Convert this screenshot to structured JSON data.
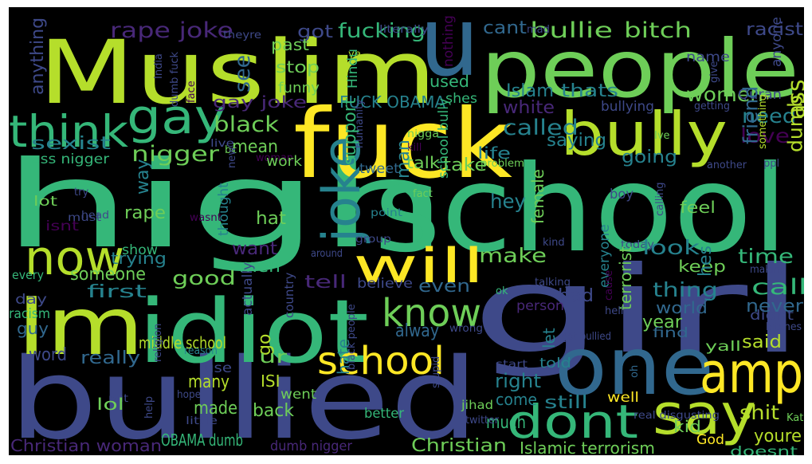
{
  "palette": {
    "background": "#000000",
    "frame": "#ffffff",
    "yellow": "#fde725",
    "lime": "#b5de2b",
    "green": "#6ece58",
    "teal": "#35b779",
    "cyan": "#1f9e89",
    "blue_teal": "#26828e",
    "blue": "#31688e",
    "indigo": "#3e4989",
    "purple": "#482878",
    "dark_purple": "#440154"
  },
  "words": [
    {
      "text": "high",
      "color": "teal"
    },
    {
      "text": "school",
      "color": "teal"
    },
    {
      "text": "Muslim",
      "color": "lime"
    },
    {
      "text": "u",
      "color": "blue"
    },
    {
      "text": "people",
      "color": "green"
    },
    {
      "text": "girl",
      "color": "indigo"
    },
    {
      "text": "bullied",
      "color": "indigo"
    },
    {
      "text": "fuck",
      "color": "yellow"
    },
    {
      "text": "Im",
      "color": "lime"
    },
    {
      "text": "idiot",
      "color": "teal"
    },
    {
      "text": "one",
      "color": "blue"
    },
    {
      "text": "bully",
      "color": "lime"
    },
    {
      "text": "gay",
      "color": "teal"
    },
    {
      "text": "think",
      "color": "teal"
    },
    {
      "text": "now",
      "color": "lime"
    },
    {
      "text": "joke",
      "color": "blue_teal"
    },
    {
      "text": "will",
      "color": "yellow"
    },
    {
      "text": "know",
      "color": "green"
    },
    {
      "text": "amp",
      "color": "yellow"
    },
    {
      "text": "say",
      "color": "lime"
    },
    {
      "text": "dont",
      "color": "teal"
    },
    {
      "text": "school",
      "color": "yellow"
    },
    {
      "text": "rape joke",
      "color": "purple"
    },
    {
      "text": "got",
      "color": "indigo"
    },
    {
      "text": "fucking",
      "color": "teal"
    },
    {
      "text": "cant",
      "color": "blue"
    },
    {
      "text": "bullie",
      "color": "green"
    },
    {
      "text": "bitch",
      "color": "green"
    },
    {
      "text": "racist",
      "color": "indigo"
    },
    {
      "text": "nothing",
      "color": "dark_purple"
    },
    {
      "text": "theyre",
      "color": "indigo"
    },
    {
      "text": "literally",
      "color": "indigo"
    },
    {
      "text": "ye",
      "color": "lime"
    },
    {
      "text": "mad",
      "color": "indigo"
    },
    {
      "text": "name",
      "color": "indigo"
    },
    {
      "text": "anyone",
      "color": "indigo"
    },
    {
      "text": "past",
      "color": "green"
    },
    {
      "text": "stop",
      "color": "green"
    },
    {
      "text": "funny",
      "color": "green"
    },
    {
      "text": "see",
      "color": "blue"
    },
    {
      "text": "India",
      "color": "indigo"
    },
    {
      "text": "dumb fuck",
      "color": "indigo"
    },
    {
      "text": "face",
      "color": "dark_purple"
    },
    {
      "text": "Hindu",
      "color": "teal"
    },
    {
      "text": "give",
      "color": "indigo"
    },
    {
      "text": "anything",
      "color": "indigo"
    },
    {
      "text": "used",
      "color": "teal"
    },
    {
      "text": "shes",
      "color": "teal"
    },
    {
      "text": "Islam",
      "color": "blue_teal"
    },
    {
      "text": "thats",
      "color": "blue_teal"
    },
    {
      "text": "women",
      "color": "green"
    },
    {
      "text": "Quran",
      "color": "indigo"
    },
    {
      "text": "FUCK OBAMA",
      "color": "blue_teal"
    },
    {
      "text": "white",
      "color": "purple"
    },
    {
      "text": "bullying",
      "color": "indigo"
    },
    {
      "text": "getting",
      "color": "indigo"
    },
    {
      "text": "gay joke",
      "color": "purple"
    },
    {
      "text": "black",
      "color": "green"
    },
    {
      "text": "called",
      "color": "blue_teal"
    },
    {
      "text": "need",
      "color": "blue_teal"
    },
    {
      "text": "love",
      "color": "dark_purple"
    },
    {
      "text": "ass",
      "color": "lime"
    },
    {
      "text": "sexist",
      "color": "blue_teal"
    },
    {
      "text": "nigger",
      "color": "green"
    },
    {
      "text": "mean",
      "color": "green"
    },
    {
      "text": "woman",
      "color": "dark_purple"
    },
    {
      "text": "nigga",
      "color": "green"
    },
    {
      "text": "kill",
      "color": "dark_purple"
    },
    {
      "text": "life",
      "color": "blue_teal"
    },
    {
      "text": "saying",
      "color": "blue_teal"
    },
    {
      "text": "going",
      "color": "blue_teal"
    },
    {
      "text": "Ive",
      "color": "green"
    },
    {
      "text": "ass nigger",
      "color": "teal"
    },
    {
      "text": "work",
      "color": "green"
    },
    {
      "text": "tweet",
      "color": "blue"
    },
    {
      "text": "talk",
      "color": "green"
    },
    {
      "text": "take",
      "color": "green"
    },
    {
      "text": "problem",
      "color": "green"
    },
    {
      "text": "friend",
      "color": "blue"
    },
    {
      "text": "dumb",
      "color": "lime"
    },
    {
      "text": "ppl",
      "color": "indigo"
    },
    {
      "text": "another",
      "color": "indigo"
    },
    {
      "text": "something",
      "color": "lime"
    },
    {
      "text": "live",
      "color": "indigo"
    },
    {
      "text": "bc",
      "color": "green"
    },
    {
      "text": "new",
      "color": "indigo"
    },
    {
      "text": "humanity",
      "color": "indigo"
    },
    {
      "text": "support",
      "color": "teal"
    },
    {
      "text": "man",
      "color": "blue_teal"
    },
    {
      "text": "way",
      "color": "blue_teal"
    },
    {
      "text": "fact",
      "color": "green"
    },
    {
      "text": "school bully",
      "color": "teal"
    },
    {
      "text": "lot",
      "color": "green"
    },
    {
      "text": "isnt",
      "color": "dark_purple"
    },
    {
      "text": "try",
      "color": "indigo"
    },
    {
      "text": "must",
      "color": "indigo"
    },
    {
      "text": "head",
      "color": "indigo"
    },
    {
      "text": "rape",
      "color": "green"
    },
    {
      "text": "thought",
      "color": "blue_teal"
    },
    {
      "text": "hat",
      "color": "green"
    },
    {
      "text": "wasnt",
      "color": "dark_purple"
    },
    {
      "text": "hey",
      "color": "blue_teal"
    },
    {
      "text": "boy",
      "color": "indigo"
    },
    {
      "text": "feel",
      "color": "green"
    },
    {
      "text": "female",
      "color": "green"
    },
    {
      "text": "calling",
      "color": "indigo"
    },
    {
      "text": "point",
      "color": "blue_teal"
    },
    {
      "text": "want",
      "color": "purple"
    },
    {
      "text": "show",
      "color": "teal"
    },
    {
      "text": "group",
      "color": "indigo"
    },
    {
      "text": "kind",
      "color": "indigo"
    },
    {
      "text": "today",
      "color": "indigo"
    },
    {
      "text": "look",
      "color": "blue_teal"
    },
    {
      "text": "make",
      "color": "green"
    },
    {
      "text": "time",
      "color": "teal"
    },
    {
      "text": "keep",
      "color": "green"
    },
    {
      "text": "making",
      "color": "indigo"
    },
    {
      "text": "trying",
      "color": "blue_teal"
    },
    {
      "text": "men",
      "color": "teal"
    },
    {
      "text": "around",
      "color": "indigo"
    },
    {
      "text": "hes",
      "color": "blue_teal"
    },
    {
      "text": "everyone",
      "color": "blue_teal"
    },
    {
      "text": "terrorist",
      "color": "green"
    },
    {
      "text": "someone",
      "color": "green"
    },
    {
      "text": "every",
      "color": "teal"
    },
    {
      "text": "first",
      "color": "blue_teal"
    },
    {
      "text": "good",
      "color": "green"
    },
    {
      "text": "tell",
      "color": "purple"
    },
    {
      "text": "believe",
      "color": "indigo"
    },
    {
      "text": "even",
      "color": "blue"
    },
    {
      "text": "thing",
      "color": "blue_teal"
    },
    {
      "text": "call",
      "color": "teal"
    },
    {
      "text": "talking",
      "color": "indigo"
    },
    {
      "text": "day",
      "color": "indigo"
    },
    {
      "text": "actually",
      "color": "indigo"
    },
    {
      "text": "country",
      "color": "indigo"
    },
    {
      "text": "person",
      "color": "purple"
    },
    {
      "text": "ok",
      "color": "teal"
    },
    {
      "text": "bad",
      "color": "indigo"
    },
    {
      "text": "world",
      "color": "blue"
    },
    {
      "text": "never",
      "color": "blue"
    },
    {
      "text": "cause",
      "color": "dark_purple"
    },
    {
      "text": "hell",
      "color": "indigo"
    },
    {
      "text": "didnt",
      "color": "indigo"
    },
    {
      "text": "racism",
      "color": "teal"
    },
    {
      "text": "guy",
      "color": "blue"
    },
    {
      "text": "alway",
      "color": "blue"
    },
    {
      "text": "wrong",
      "color": "indigo"
    },
    {
      "text": "year",
      "color": "green"
    },
    {
      "text": "let",
      "color": "blue_teal"
    },
    {
      "text": "find",
      "color": "blue"
    },
    {
      "text": "bitches",
      "color": "indigo"
    },
    {
      "text": "middle school",
      "color": "lime"
    },
    {
      "text": "reason",
      "color": "blue_teal"
    },
    {
      "text": "got bullied",
      "color": "indigo"
    },
    {
      "text": "said",
      "color": "lime"
    },
    {
      "text": "word",
      "color": "indigo"
    },
    {
      "text": "really",
      "color": "blue"
    },
    {
      "text": "go",
      "color": "lime"
    },
    {
      "text": "ur",
      "color": "green"
    },
    {
      "text": "told",
      "color": "blue_teal"
    },
    {
      "text": "yall",
      "color": "green"
    },
    {
      "text": "use",
      "color": "indigo"
    },
    {
      "text": "start",
      "color": "indigo"
    },
    {
      "text": "religion",
      "color": "indigo"
    },
    {
      "text": "hope",
      "color": "indigo"
    },
    {
      "text": "many",
      "color": "lime"
    },
    {
      "text": "ISI",
      "color": "lime"
    },
    {
      "text": "hate",
      "color": "blue_teal"
    },
    {
      "text": "right",
      "color": "blue_teal"
    },
    {
      "text": "oh",
      "color": "blue"
    },
    {
      "text": "come",
      "color": "blue_teal"
    },
    {
      "text": "still",
      "color": "blue_teal"
    },
    {
      "text": "went",
      "color": "green"
    },
    {
      "text": "put",
      "color": "indigo"
    },
    {
      "text": "lol",
      "color": "green"
    },
    {
      "text": "made",
      "color": "green"
    },
    {
      "text": "back",
      "color": "green"
    },
    {
      "text": "stupid",
      "color": "indigo"
    },
    {
      "text": "well",
      "color": "yellow"
    },
    {
      "text": "much",
      "color": "teal"
    },
    {
      "text": "shit",
      "color": "lime"
    },
    {
      "text": "youre",
      "color": "lime"
    },
    {
      "text": "Kat",
      "color": "green"
    },
    {
      "text": "help",
      "color": "indigo"
    },
    {
      "text": "little",
      "color": "indigo"
    },
    {
      "text": "better",
      "color": "teal"
    },
    {
      "text": "black people",
      "color": "indigo"
    },
    {
      "text": "jihad",
      "color": "green"
    },
    {
      "text": "twitter",
      "color": "indigo"
    },
    {
      "text": "real disgusting",
      "color": "indigo"
    },
    {
      "text": "kid",
      "color": "green"
    },
    {
      "text": "God",
      "color": "yellow"
    },
    {
      "text": "Christian woman",
      "color": "purple"
    },
    {
      "text": "OBAMA dumb",
      "color": "teal"
    },
    {
      "text": "dumb nigger",
      "color": "purple"
    },
    {
      "text": "Christian",
      "color": "green"
    },
    {
      "text": "Islamic terrorism",
      "color": "green"
    },
    {
      "text": "doesnt",
      "color": "teal"
    }
  ]
}
